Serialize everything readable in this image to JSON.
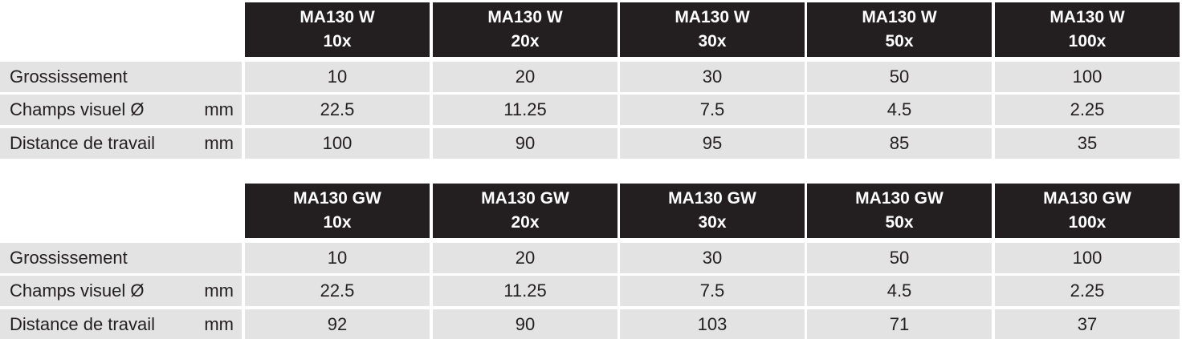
{
  "tables": [
    {
      "columns": [
        [
          "MA130 W",
          "10x"
        ],
        [
          "MA130 W",
          "20x"
        ],
        [
          "MA130 W",
          "30x"
        ],
        [
          "MA130 W",
          "50x"
        ],
        [
          "MA130 W",
          "100x"
        ]
      ],
      "rows": [
        {
          "label": "Grossissement",
          "values": [
            10,
            20,
            30,
            50,
            100
          ]
        },
        {
          "label": "Champs visuel Ø",
          "unit": "mm",
          "values": [
            22.5,
            11.25,
            7.5,
            4.5,
            2.25
          ]
        },
        {
          "label": "Distance de travail",
          "unit": "mm",
          "values": [
            100,
            90,
            95,
            85,
            35
          ]
        }
      ]
    },
    {
      "columns": [
        [
          "MA130 GW",
          "10x"
        ],
        [
          "MA130 GW",
          "20x"
        ],
        [
          "MA130 GW",
          "30x"
        ],
        [
          "MA130 GW",
          "50x"
        ],
        [
          "MA130 GW",
          "100x"
        ]
      ],
      "rows": [
        {
          "label": "Grossissement",
          "values": [
            10,
            20,
            30,
            50,
            100
          ]
        },
        {
          "label": "Champs visuel Ø",
          "unit": "mm",
          "values": [
            22.5,
            11.25,
            7.5,
            4.5,
            2.25
          ]
        },
        {
          "label": "Distance de travail",
          "unit": "mm",
          "values": [
            92,
            90,
            103,
            71,
            37
          ]
        }
      ]
    }
  ]
}
